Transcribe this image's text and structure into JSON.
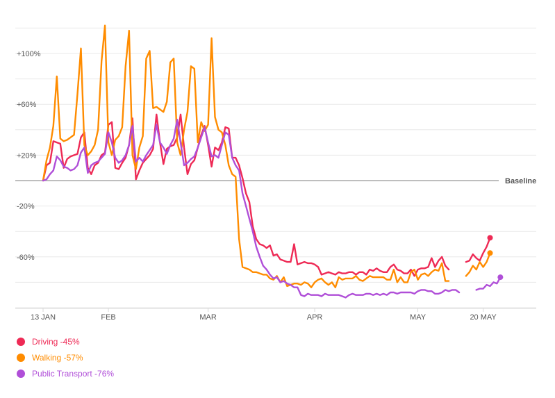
{
  "chart_data": {
    "type": "line",
    "title": "",
    "xlabel": "",
    "ylabel": "",
    "ylim": [
      -100,
      122
    ],
    "y_ticks": [
      {
        "value": 100,
        "label": "+100%"
      },
      {
        "value": 60,
        "label": "+60%"
      },
      {
        "value": 20,
        "label": "+20%"
      },
      {
        "value": -20,
        "label": "-20%"
      },
      {
        "value": -60,
        "label": "-60%"
      }
    ],
    "x_ticks": [
      {
        "day": 0,
        "label": "13 JAN"
      },
      {
        "day": 19,
        "label": "FEB"
      },
      {
        "day": 48,
        "label": "MAR"
      },
      {
        "day": 79,
        "label": "APR"
      },
      {
        "day": 109,
        "label": "MAY"
      },
      {
        "day": 128,
        "label": "20 MAY"
      }
    ],
    "baseline_label": "Baseline",
    "gap_days": [
      118,
      119,
      120,
      121
    ],
    "series": [
      {
        "name": "Driving",
        "legend_label": "Driving -45%",
        "color": "#ee2a55",
        "values": [
          0,
          12,
          14,
          31,
          30,
          29,
          10,
          17,
          19,
          20,
          21,
          34,
          38,
          10,
          5,
          12,
          14,
          20,
          22,
          44,
          46,
          10,
          9,
          14,
          18,
          28,
          49,
          1,
          8,
          14,
          17,
          20,
          25,
          52,
          30,
          13,
          25,
          27,
          28,
          34,
          52,
          26,
          5,
          13,
          16,
          26,
          36,
          43,
          28,
          11,
          26,
          24,
          30,
          42,
          41,
          18,
          18,
          12,
          2,
          -10,
          -17,
          -36,
          -46,
          -50,
          -51,
          -53,
          -51,
          -59,
          -58,
          -62,
          -63,
          -64,
          -64,
          -50,
          -66,
          -65,
          -64,
          -65,
          -65,
          -66,
          -68,
          -74,
          -73,
          -72,
          -73,
          -74,
          -72,
          -73,
          -73,
          -72,
          -72,
          -74,
          -72,
          -72,
          -74,
          -70,
          -71,
          -69,
          -71,
          -72,
          -72,
          -68,
          -66,
          -70,
          -71,
          -73,
          -73,
          -70,
          -75,
          -70,
          -69,
          -69,
          -68,
          -61,
          -68,
          -63,
          -60,
          -67,
          -70,
          null,
          null,
          null,
          null,
          -64,
          -63,
          -58,
          -61,
          -63,
          -57,
          -52,
          -45
        ],
        "end_value": -45
      },
      {
        "name": "Walking",
        "legend_label": "Walking -57%",
        "color": "#ff8c00",
        "values": [
          0,
          16,
          26,
          43,
          82,
          33,
          31,
          32,
          34,
          36,
          68,
          104,
          28,
          20,
          23,
          28,
          40,
          94,
          122,
          30,
          20,
          32,
          35,
          42,
          90,
          118,
          20,
          9,
          26,
          35,
          96,
          102,
          57,
          58,
          56,
          54,
          62,
          93,
          96,
          30,
          20,
          40,
          54,
          90,
          88,
          30,
          46,
          39,
          44,
          112,
          50,
          40,
          38,
          28,
          12,
          5,
          3,
          -46,
          -68,
          -69,
          -70,
          -72,
          -72,
          -73,
          -74,
          -74,
          -77,
          -78,
          -75,
          -80,
          -76,
          -83,
          -82,
          -81,
          -81,
          -82,
          -80,
          -81,
          -84,
          -80,
          -78,
          -77,
          -80,
          -82,
          -80,
          -84,
          -76,
          -78,
          -77,
          -77,
          -77,
          -75,
          -78,
          -79,
          -77,
          -75,
          -76,
          -76,
          -76,
          -76,
          -78,
          -78,
          -70,
          -80,
          -76,
          -80,
          -80,
          -72,
          -70,
          -78,
          -74,
          -73,
          -75,
          -72,
          -70,
          -71,
          -65,
          -79,
          -79,
          null,
          null,
          null,
          null,
          -75,
          -72,
          -67,
          -70,
          -64,
          -68,
          -64,
          -57
        ],
        "end_value": -57
      },
      {
        "name": "Public Transport",
        "legend_label": "Public Transport -76%",
        "color": "#b04fd8",
        "values": [
          0,
          1,
          5,
          8,
          19,
          16,
          11,
          10,
          8,
          9,
          12,
          22,
          26,
          6,
          12,
          14,
          15,
          18,
          21,
          38,
          30,
          18,
          14,
          16,
          20,
          28,
          43,
          15,
          18,
          15,
          20,
          24,
          28,
          44,
          30,
          26,
          21,
          28,
          33,
          48,
          30,
          12,
          14,
          17,
          19,
          26,
          34,
          42,
          30,
          19,
          20,
          18,
          28,
          38,
          36,
          18,
          12,
          8,
          -10,
          -20,
          -30,
          -40,
          -52,
          -60,
          -67,
          -70,
          -74,
          -77,
          -76,
          -80,
          -79,
          -81,
          -82,
          -84,
          -84,
          -90,
          -91,
          -89,
          -90,
          -90,
          -90,
          -91,
          -89,
          -90,
          -90,
          -90,
          -90,
          -91,
          -92,
          -90,
          -89,
          -90,
          -90,
          -90,
          -89,
          -89,
          -90,
          -89,
          -90,
          -89,
          -90,
          -88,
          -88,
          -89,
          -88,
          -88,
          -88,
          -88,
          -89,
          -87,
          -86,
          -86,
          -87,
          -87,
          -89,
          -89,
          -88,
          -86,
          -87,
          -86,
          -86,
          -88,
          null,
          null,
          null,
          null,
          -86,
          -85,
          -85,
          -82,
          -83,
          -80,
          -81,
          -76
        ],
        "end_value": -76
      }
    ]
  }
}
